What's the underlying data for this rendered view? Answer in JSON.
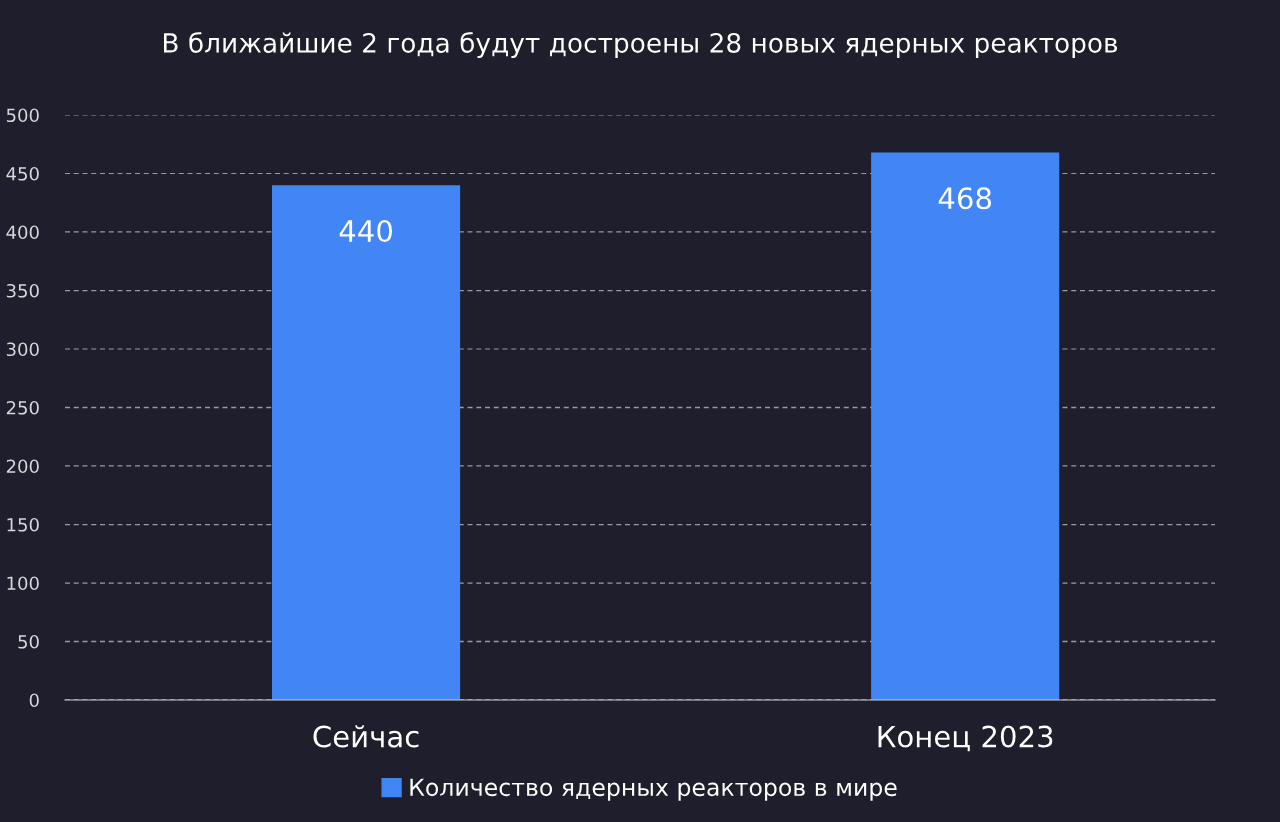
{
  "chart_data": {
    "type": "bar",
    "title": "В ближайшие 2 года будут достроены 28 новых ядерных реакторов",
    "categories": [
      "Сейчас",
      "Конец 2023"
    ],
    "series": [
      {
        "name": "Количество ядерных реакторов в мире",
        "color": "#4285f4",
        "values": [
          440,
          468
        ]
      }
    ],
    "ylim": [
      0,
      500
    ],
    "yticks": [
      0,
      50,
      100,
      150,
      200,
      250,
      300,
      350,
      400,
      450,
      500
    ],
    "grid": "y",
    "legend": "bottom",
    "data_labels": true
  }
}
